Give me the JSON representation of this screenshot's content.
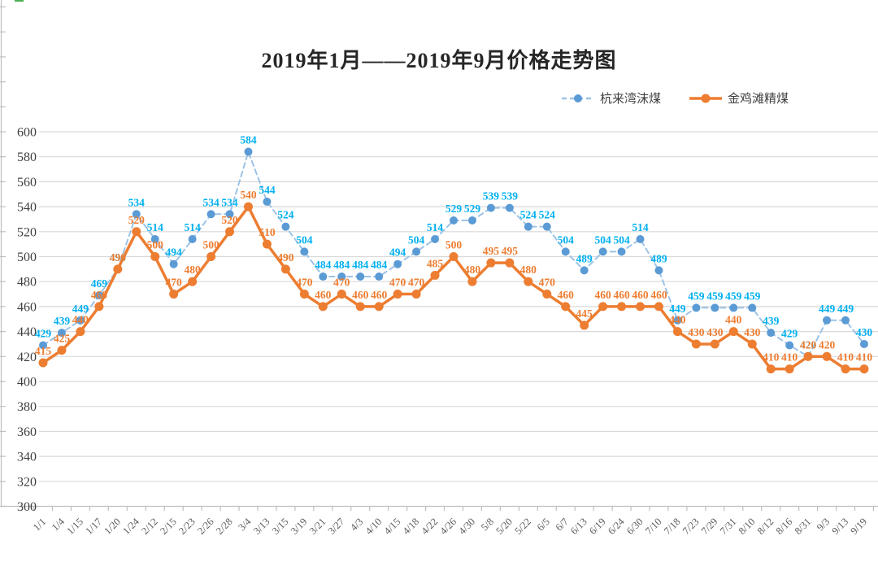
{
  "chart_data": {
    "type": "line",
    "title": "2019年1月——2019年9月价格走势图",
    "xlabel": "",
    "ylabel": "",
    "ylim": [
      300,
      600
    ],
    "ytick_step": 20,
    "grid": true,
    "grid_color": "#D9D9D9",
    "axis_color": "#BFBFBF",
    "tick_label_color": "#595959",
    "y_label_color": "#3F3F3F",
    "legend_position": "top-right",
    "data_labels": true,
    "categories": [
      "1/1",
      "1/4",
      "1/15",
      "1/17",
      "1/20",
      "1/24",
      "2/12",
      "2/15",
      "2/23",
      "2/26",
      "2/28",
      "3/4",
      "3/13",
      "3/15",
      "3/19",
      "3/21",
      "3/27",
      "4/3",
      "4/10",
      "4/15",
      "4/18",
      "4/22",
      "4/26",
      "4/30",
      "5/8",
      "5/20",
      "5/22",
      "6/5",
      "6/7",
      "6/13",
      "6/19",
      "6/24",
      "6/30",
      "7/10",
      "7/18",
      "7/23",
      "7/29",
      "7/31",
      "8/10",
      "8/12",
      "8/16",
      "8/31",
      "9/3",
      "9/13",
      "9/19"
    ],
    "series": [
      {
        "name": "杭来湾沫煤",
        "style": "dashed",
        "color": "#5B9BD5",
        "line_color": "#9DC3E6",
        "label_color": "#00B0F0",
        "values": [
          429,
          439,
          449,
          469,
          490,
          534,
          514,
          494,
          514,
          534,
          534,
          584,
          544,
          524,
          504,
          484,
          484,
          484,
          484,
          494,
          504,
          514,
          529,
          529,
          539,
          539,
          524,
          524,
          504,
          489,
          504,
          504,
          514,
          489,
          449,
          459,
          459,
          459,
          459,
          439,
          429,
          420,
          449,
          449,
          430
        ]
      },
      {
        "name": "金鸡滩精煤",
        "style": "solid",
        "color": "#ED7D31",
        "line_color": "#ED7D31",
        "label_color": "#ED7D31",
        "values": [
          415,
          425,
          440,
          460,
          490,
          520,
          500,
          470,
          480,
          500,
          520,
          540,
          510,
          490,
          470,
          460,
          470,
          460,
          460,
          470,
          470,
          485,
          500,
          480,
          495,
          495,
          480,
          470,
          460,
          445,
          460,
          460,
          460,
          460,
          440,
          430,
          430,
          440,
          430,
          410,
          410,
          420,
          420,
          410,
          410
        ]
      }
    ]
  }
}
